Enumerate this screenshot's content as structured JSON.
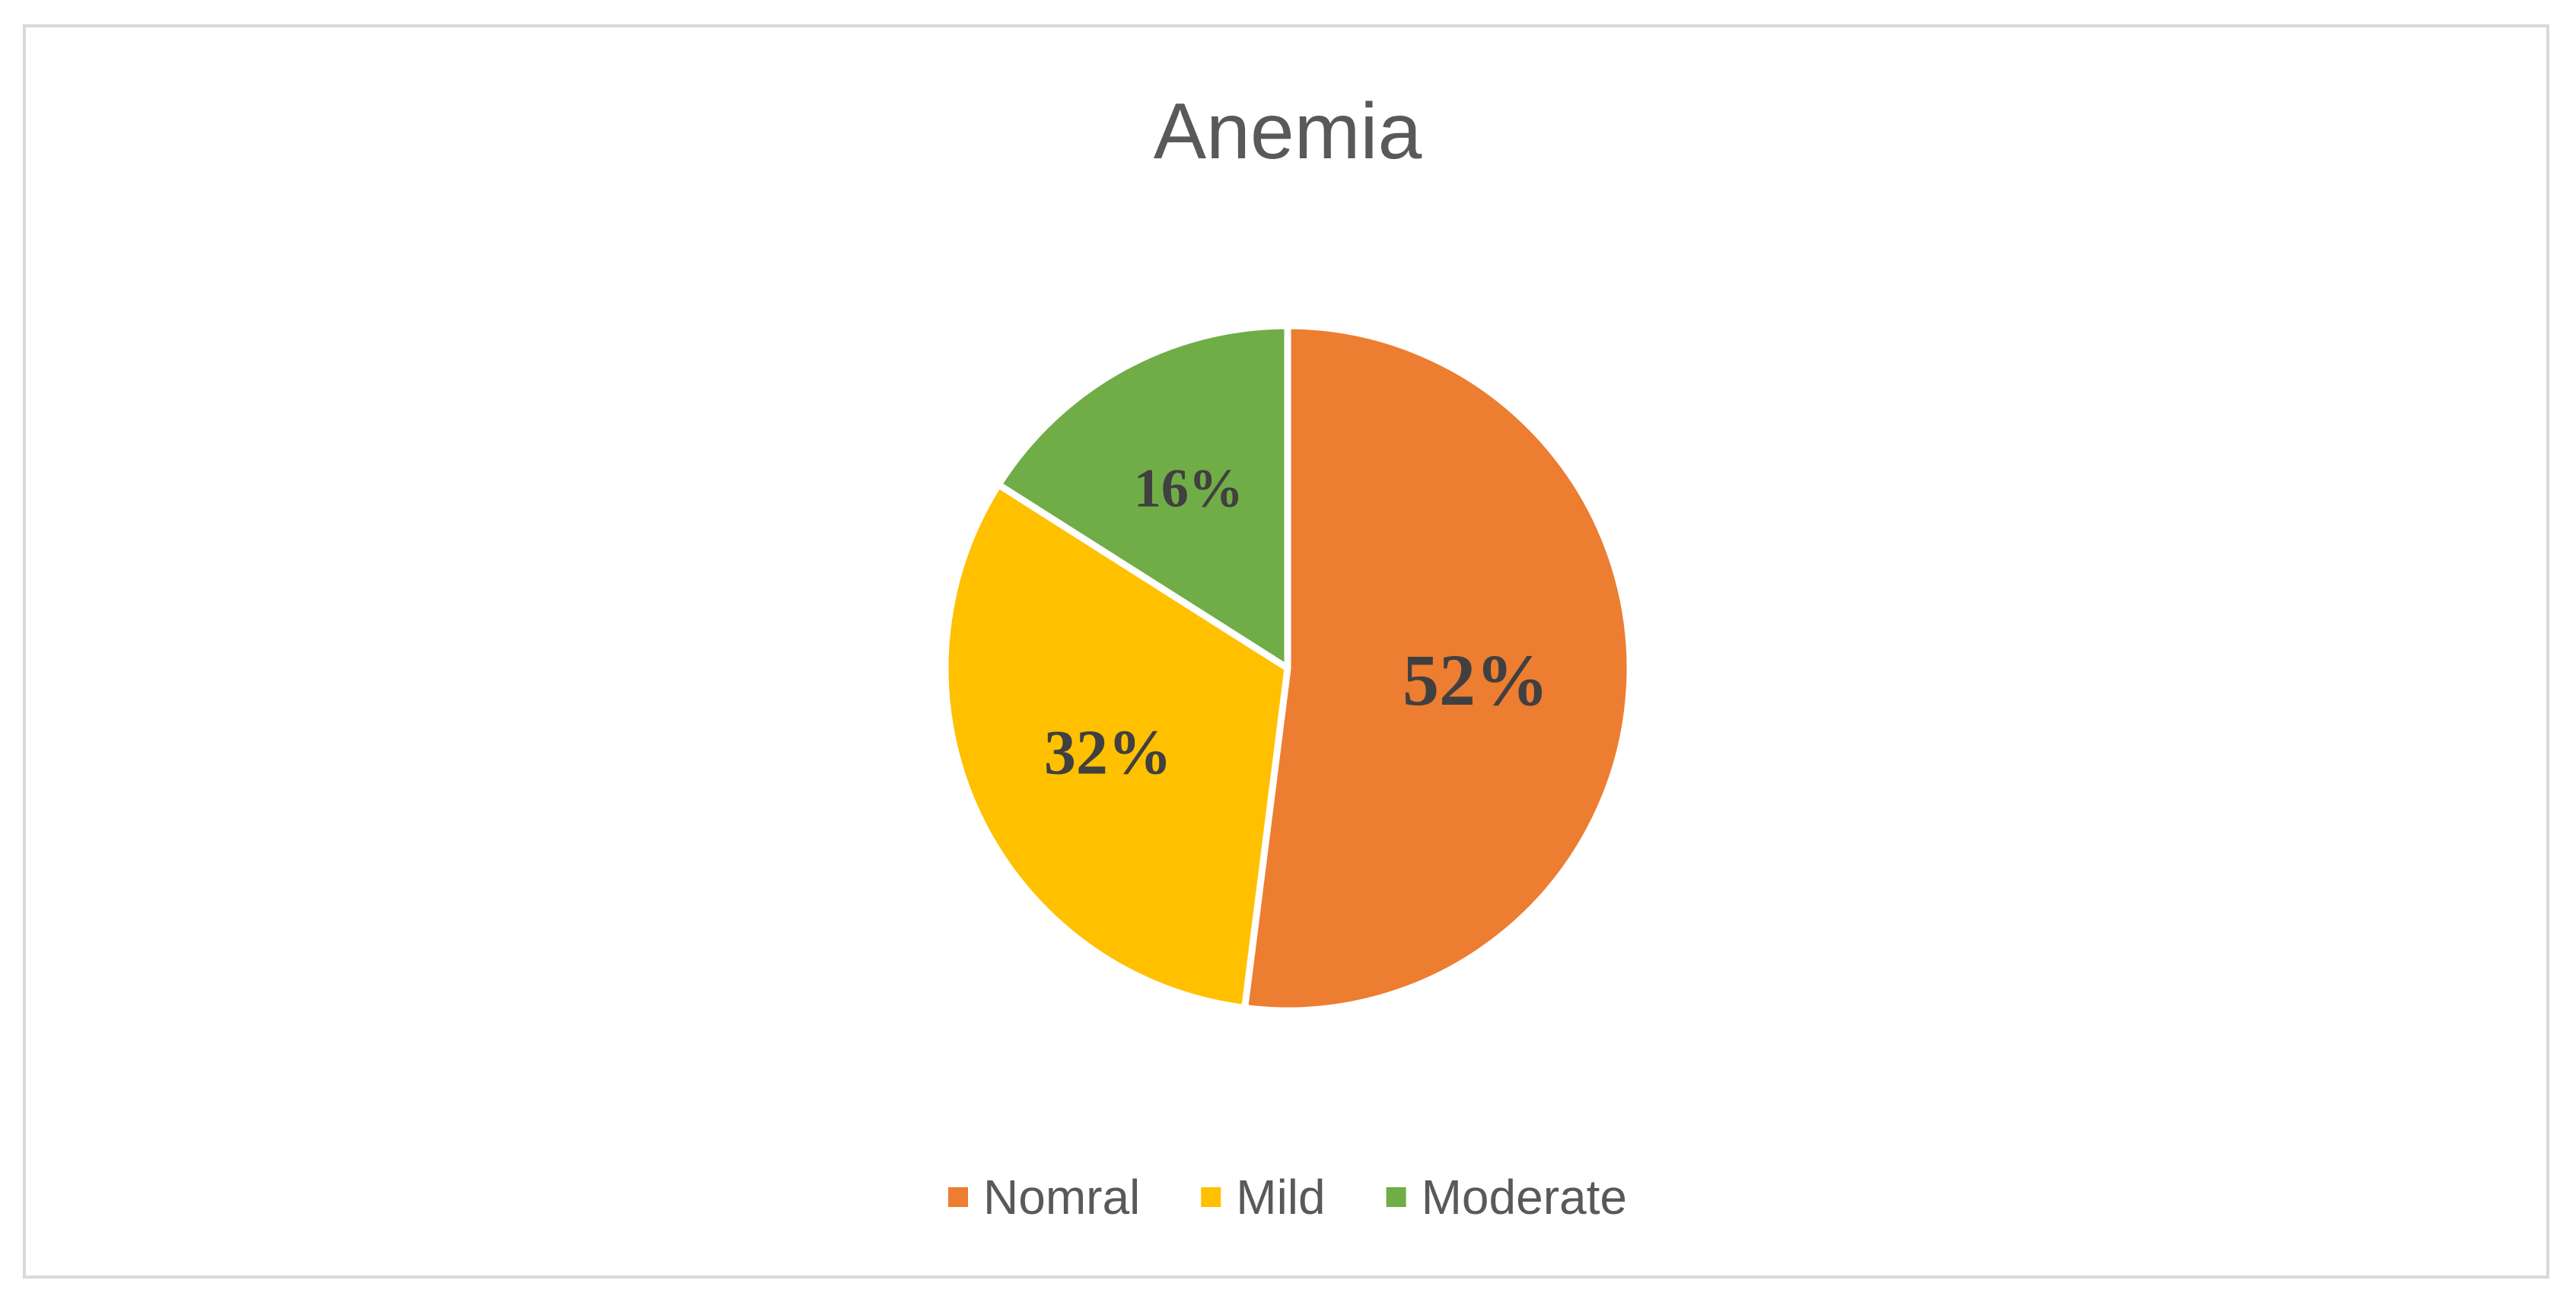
{
  "chart_data": {
    "type": "pie",
    "title": "Anemia",
    "categories": [
      "Nomral",
      "Mild",
      "Moderate"
    ],
    "values": [
      52,
      32,
      16
    ],
    "labels": [
      "52%",
      "32%",
      "16%"
    ],
    "colors": [
      "#ED7D31",
      "#FFC000",
      "#70AD47"
    ],
    "start_angle_deg": 0,
    "direction": "clockwise",
    "legend": "bottom"
  }
}
